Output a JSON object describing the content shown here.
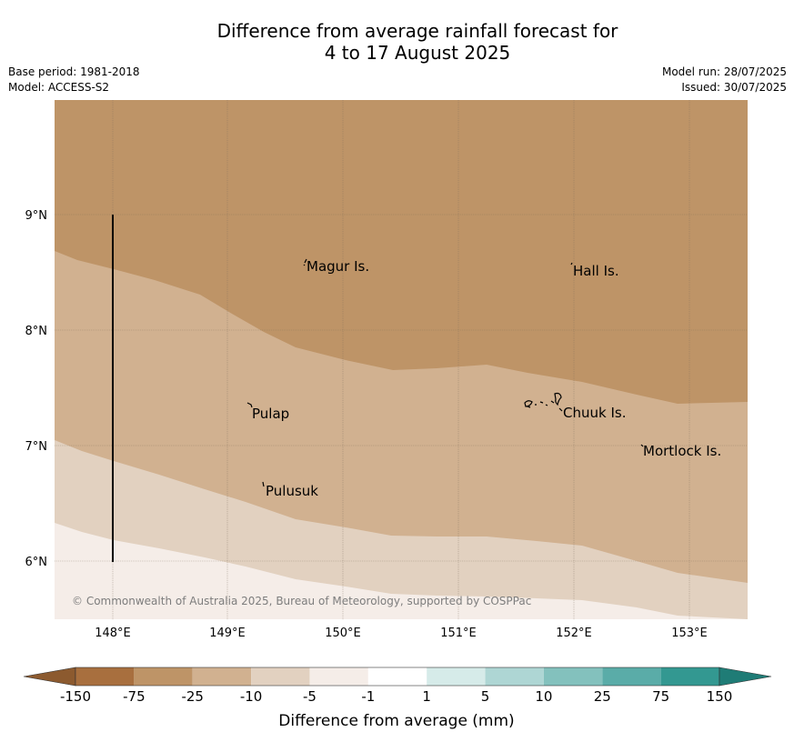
{
  "header": {
    "title_line1": "Difference from average rainfall forecast for",
    "title_line2": "4 to 17 August 2025",
    "base_period": "Base period: 1981-2018",
    "model": "Model: ACCESS-S2",
    "model_run": "Model run: 28/07/2025",
    "issued": "Issued: 30/07/2025"
  },
  "map": {
    "lon_ticks": [
      "148°E",
      "149°E",
      "150°E",
      "151°E",
      "152°E",
      "153°E"
    ],
    "lat_ticks": [
      "9°N",
      "8°N",
      "7°N",
      "6°N"
    ],
    "places": [
      {
        "name": "Magur Is."
      },
      {
        "name": "Hall Is."
      },
      {
        "name": "Pulap"
      },
      {
        "name": "Chuuk Is."
      },
      {
        "name": "Mortlock Is."
      },
      {
        "name": "Pulusuk"
      }
    ],
    "credit": "© Commonwealth of Australia 2025, Bureau of Meteorology, supported by COSPPac",
    "zone_colors": {
      "75_to_25_deficit": "#be9467",
      "25_to_10_deficit": "#d1b190",
      "10_to_5_deficit": "#e2d1c0",
      "5_to_1_deficit": "#f5ede8"
    }
  },
  "colorbar": {
    "ticks": [
      "-150",
      "-75",
      "-25",
      "-10",
      "-5",
      "-1",
      "1",
      "5",
      "10",
      "25",
      "75",
      "150"
    ],
    "colors": [
      "#a86f3e",
      "#be9467",
      "#d1b190",
      "#e2d1c0",
      "#f5ede8",
      "#ffffff",
      "#d6ebe9",
      "#aed6d4",
      "#83c1bd",
      "#5aaca8",
      "#339891"
    ],
    "low_extend_color": "#8c5a2f",
    "high_extend_color": "#1f7c76",
    "label": "Difference from average (mm)"
  }
}
